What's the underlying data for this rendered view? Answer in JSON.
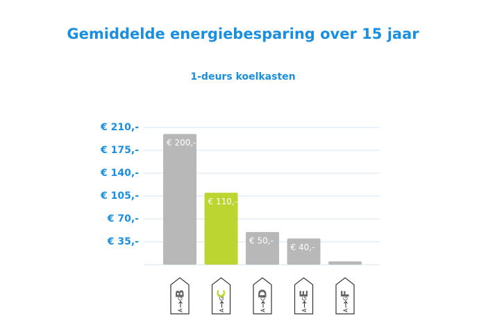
{
  "chart_data": {
    "type": "bar",
    "title": "Gemiddelde energiebesparing over 15 jaar",
    "subtitle": "1-deurs koelkasten",
    "categories": [
      "B",
      "C",
      "D",
      "E",
      "F"
    ],
    "values": [
      200,
      110,
      50,
      40,
      5
    ],
    "value_labels": [
      "€ 200,-",
      "€ 110,-",
      "€ 50,-",
      "€ 40,-",
      null
    ],
    "colors": [
      "#b8b8b8",
      "#bcd531",
      "#b8b8b8",
      "#b8b8b8",
      "#b8b8b8"
    ],
    "label_scale": [
      "A",
      "G"
    ],
    "ylim": [
      0,
      210
    ],
    "yticks": [
      {
        "value": 35,
        "label": "€ 35,-"
      },
      {
        "value": 70,
        "label": "€ 70,-"
      },
      {
        "value": 105,
        "label": "€ 105,-"
      },
      {
        "value": 140,
        "label": "€ 140,-"
      },
      {
        "value": 175,
        "label": "€ 175,-"
      },
      {
        "value": 210,
        "label": "€ 210,-"
      }
    ],
    "grid": true
  }
}
